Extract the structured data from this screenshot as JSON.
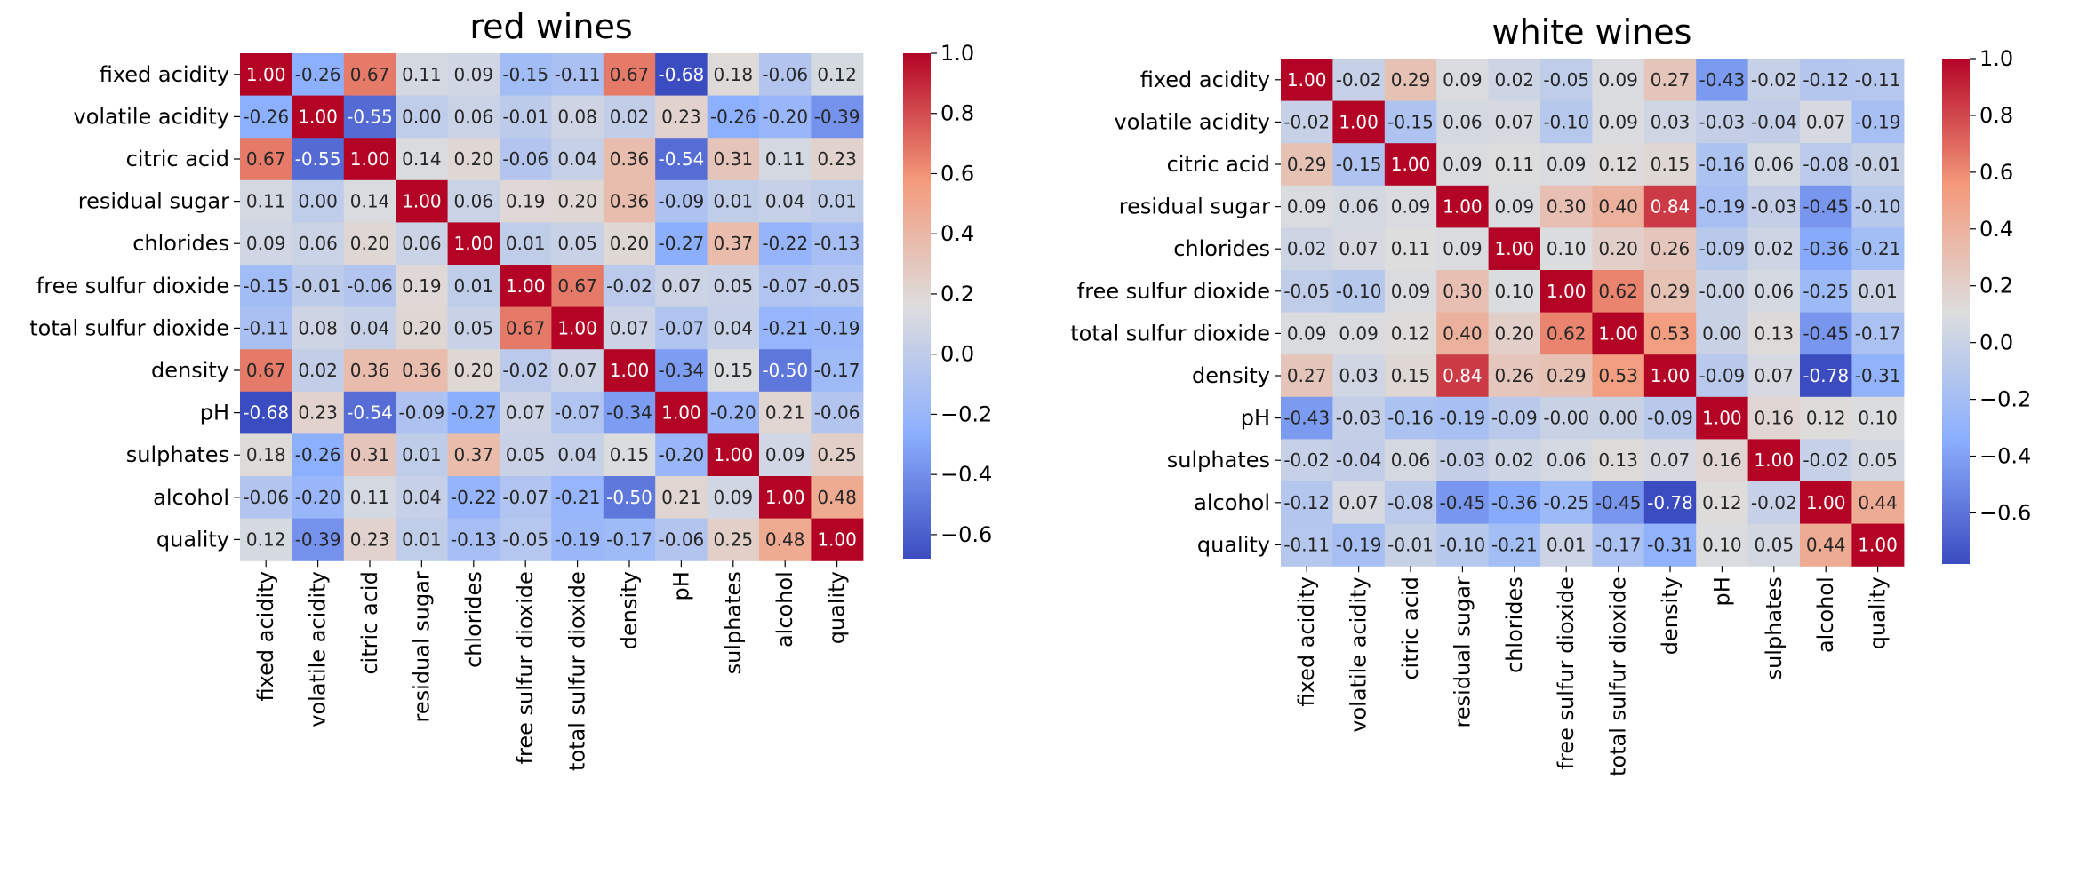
{
  "chart_data": [
    {
      "type": "heatmap",
      "title": "red wines",
      "variables": [
        "fixed acidity",
        "volatile acidity",
        "citric acid",
        "residual sugar",
        "chlorides",
        "free sulfur dioxide",
        "total sulfur dioxide",
        "density",
        "pH",
        "sulphates",
        "alcohol",
        "quality"
      ],
      "cell_labels": [
        [
          "1.00",
          "-0.26",
          "0.67",
          "0.11",
          "0.09",
          "-0.15",
          "-0.11",
          "0.67",
          "-0.68",
          "0.18",
          "-0.06",
          "0.12"
        ],
        [
          "-0.26",
          "1.00",
          "-0.55",
          "0.00",
          "0.06",
          "-0.01",
          "0.08",
          "0.02",
          "0.23",
          "-0.26",
          "-0.20",
          "-0.39"
        ],
        [
          "0.67",
          "-0.55",
          "1.00",
          "0.14",
          "0.20",
          "-0.06",
          "0.04",
          "0.36",
          "-0.54",
          "0.31",
          "0.11",
          "0.23"
        ],
        [
          "0.11",
          "0.00",
          "0.14",
          "1.00",
          "0.06",
          "0.19",
          "0.20",
          "0.36",
          "-0.09",
          "0.01",
          "0.04",
          "0.01"
        ],
        [
          "0.09",
          "0.06",
          "0.20",
          "0.06",
          "1.00",
          "0.01",
          "0.05",
          "0.20",
          "-0.27",
          "0.37",
          "-0.22",
          "-0.13"
        ],
        [
          "-0.15",
          "-0.01",
          "-0.06",
          "0.19",
          "0.01",
          "1.00",
          "0.67",
          "-0.02",
          "0.07",
          "0.05",
          "-0.07",
          "-0.05"
        ],
        [
          "-0.11",
          "0.08",
          "0.04",
          "0.20",
          "0.05",
          "0.67",
          "1.00",
          "0.07",
          "-0.07",
          "0.04",
          "-0.21",
          "-0.19"
        ],
        [
          "0.67",
          "0.02",
          "0.36",
          "0.36",
          "0.20",
          "-0.02",
          "0.07",
          "1.00",
          "-0.34",
          "0.15",
          "-0.50",
          "-0.17"
        ],
        [
          "-0.68",
          "0.23",
          "-0.54",
          "-0.09",
          "-0.27",
          "0.07",
          "-0.07",
          "-0.34",
          "1.00",
          "-0.20",
          "0.21",
          "-0.06"
        ],
        [
          "0.18",
          "-0.26",
          "0.31",
          "0.01",
          "0.37",
          "0.05",
          "0.04",
          "0.15",
          "-0.20",
          "1.00",
          "0.09",
          "0.25"
        ],
        [
          "-0.06",
          "-0.20",
          "0.11",
          "0.04",
          "-0.22",
          "-0.07",
          "-0.21",
          "-0.50",
          "0.21",
          "0.09",
          "1.00",
          "0.48"
        ],
        [
          "0.12",
          "-0.39",
          "0.23",
          "0.01",
          "-0.13",
          "-0.05",
          "-0.19",
          "-0.17",
          "-0.06",
          "0.25",
          "0.48",
          "1.00"
        ]
      ],
      "vmin": -0.68,
      "vmax": 1.0,
      "colormap": "coolwarm",
      "colorbar_ticks": [
        "1.0",
        "0.8",
        "0.6",
        "0.4",
        "0.2",
        "0.0",
        "−0.2",
        "−0.4",
        "−0.6"
      ]
    },
    {
      "type": "heatmap",
      "title": "white wines",
      "variables": [
        "fixed acidity",
        "volatile acidity",
        "citric acid",
        "residual sugar",
        "chlorides",
        "free sulfur dioxide",
        "total sulfur dioxide",
        "density",
        "pH",
        "sulphates",
        "alcohol",
        "quality"
      ],
      "cell_labels": [
        [
          "1.00",
          "-0.02",
          "0.29",
          "0.09",
          "0.02",
          "-0.05",
          "0.09",
          "0.27",
          "-0.43",
          "-0.02",
          "-0.12",
          "-0.11"
        ],
        [
          "-0.02",
          "1.00",
          "-0.15",
          "0.06",
          "0.07",
          "-0.10",
          "0.09",
          "0.03",
          "-0.03",
          "-0.04",
          "0.07",
          "-0.19"
        ],
        [
          "0.29",
          "-0.15",
          "1.00",
          "0.09",
          "0.11",
          "0.09",
          "0.12",
          "0.15",
          "-0.16",
          "0.06",
          "-0.08",
          "-0.01"
        ],
        [
          "0.09",
          "0.06",
          "0.09",
          "1.00",
          "0.09",
          "0.30",
          "0.40",
          "0.84",
          "-0.19",
          "-0.03",
          "-0.45",
          "-0.10"
        ],
        [
          "0.02",
          "0.07",
          "0.11",
          "0.09",
          "1.00",
          "0.10",
          "0.20",
          "0.26",
          "-0.09",
          "0.02",
          "-0.36",
          "-0.21"
        ],
        [
          "-0.05",
          "-0.10",
          "0.09",
          "0.30",
          "0.10",
          "1.00",
          "0.62",
          "0.29",
          "-0.00",
          "0.06",
          "-0.25",
          "0.01"
        ],
        [
          "0.09",
          "0.09",
          "0.12",
          "0.40",
          "0.20",
          "0.62",
          "1.00",
          "0.53",
          "0.00",
          "0.13",
          "-0.45",
          "-0.17"
        ],
        [
          "0.27",
          "0.03",
          "0.15",
          "0.84",
          "0.26",
          "0.29",
          "0.53",
          "1.00",
          "-0.09",
          "0.07",
          "-0.78",
          "-0.31"
        ],
        [
          "-0.43",
          "-0.03",
          "-0.16",
          "-0.19",
          "-0.09",
          "-0.00",
          "0.00",
          "-0.09",
          "1.00",
          "0.16",
          "0.12",
          "0.10"
        ],
        [
          "-0.02",
          "-0.04",
          "0.06",
          "-0.03",
          "0.02",
          "0.06",
          "0.13",
          "0.07",
          "0.16",
          "1.00",
          "-0.02",
          "0.05"
        ],
        [
          "-0.12",
          "0.07",
          "-0.08",
          "-0.45",
          "-0.36",
          "-0.25",
          "-0.45",
          "-0.78",
          "0.12",
          "-0.02",
          "1.00",
          "0.44"
        ],
        [
          "-0.11",
          "-0.19",
          "-0.01",
          "-0.10",
          "-0.21",
          "0.01",
          "-0.17",
          "-0.31",
          "0.10",
          "0.05",
          "0.44",
          "1.00"
        ]
      ],
      "vmin": -0.78,
      "vmax": 1.0,
      "colormap": "coolwarm",
      "colorbar_ticks": [
        "1.0",
        "0.8",
        "0.6",
        "0.4",
        "0.2",
        "0.0",
        "−0.2",
        "−0.4",
        "−0.6"
      ]
    }
  ]
}
